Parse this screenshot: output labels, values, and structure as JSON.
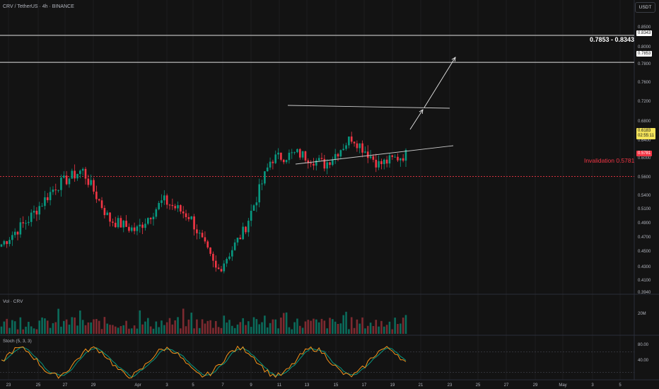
{
  "header": {
    "symbol_title": "CRV / TetherUS · 4h · BINANCE",
    "currency_button": "USDT"
  },
  "annotations": {
    "target_zone": "0.7853 - 0.8343",
    "invalidation": "Invalidation 0.5781"
  },
  "price_tags": {
    "upper": "0.8343",
    "lower": "0.7853",
    "current": "0.6183",
    "countdown": "02:55:11",
    "invalidation": "0.5781"
  },
  "volume_pane": {
    "label": "Vol · CRV",
    "axis_label": "20M"
  },
  "stoch_pane": {
    "label": "Stoch (5, 3, 3)",
    "levels": [
      "80.00",
      "40.00"
    ]
  },
  "colors": {
    "background": "#131313",
    "up": "#089981",
    "down": "#f23645",
    "vol_up": "#0b6b5b",
    "vol_down": "#7d2a30",
    "stoch_k": "#f7931a",
    "stoch_d": "#089981",
    "invalidation": "#f23645",
    "level_line": "#e0e0e0"
  },
  "chart_data": {
    "type": "candlestick",
    "symbol": "CRV / TetherUS",
    "timeframe": "4h",
    "exchange": "BINANCE",
    "y_ticks": [
      "0.8500",
      "0.8000",
      "0.7800",
      "0.7600",
      "0.7200",
      "0.6800",
      "0.6400",
      "0.6000",
      "0.5600",
      "0.5400",
      "0.5100",
      "0.4900",
      "0.4700",
      "0.4500",
      "0.4300",
      "0.4100",
      "0.3940",
      "0.3780"
    ],
    "x_ticks": [
      "23",
      "25",
      "27",
      "29",
      "Apr",
      "3",
      "5",
      "7",
      "9",
      "11",
      "13",
      "15",
      "17",
      "19",
      "21",
      "23",
      "25",
      "27",
      "29",
      "May",
      "3",
      "5"
    ],
    "levels": [
      0.8343,
      0.7853
    ],
    "invalidation": 0.5781,
    "last_price": 0.6183,
    "key_closes": [
      {
        "label": "23",
        "close": 0.455
      },
      {
        "label": "25",
        "close": 0.5
      },
      {
        "label": "27",
        "close": 0.56
      },
      {
        "label": "27",
        "close": 0.59
      },
      {
        "label": "29",
        "close": 0.5
      },
      {
        "label": "Apr",
        "close": 0.48
      },
      {
        "label": "3",
        "close": 0.535
      },
      {
        "label": "5",
        "close": 0.505
      },
      {
        "label": "7",
        "close": 0.405
      },
      {
        "label": "9",
        "close": 0.48
      },
      {
        "label": "11",
        "close": 0.61
      },
      {
        "label": "13",
        "close": 0.62
      },
      {
        "label": "15",
        "close": 0.6
      },
      {
        "label": "17",
        "close": 0.65
      },
      {
        "label": "19",
        "close": 0.6
      },
      {
        "label": "19",
        "close": 0.618
      }
    ]
  }
}
